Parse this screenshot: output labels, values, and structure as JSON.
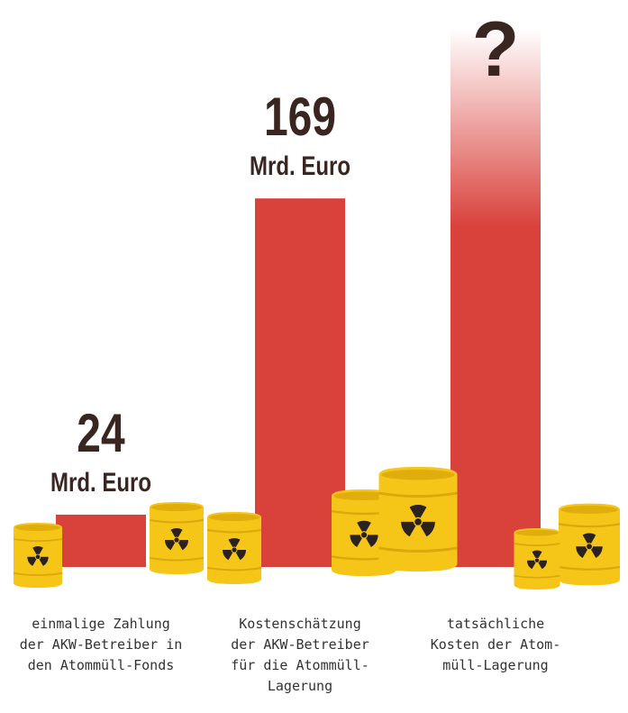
{
  "chart_data": {
    "type": "bar",
    "categories": [
      "einmalige Zahlung\nder AKW-Betreiber in\nden Atommüll-Fonds",
      "Kostenschätzung\nder AKW-Betreiber\nfür die Atommüll-\nLagerung",
      "tatsächliche\nKosten der Atom-\nmüll-Lagerung"
    ],
    "values": [
      24,
      169,
      null
    ],
    "value_labels": [
      "24",
      "169",
      "?"
    ],
    "unit": "Mrd. Euro",
    "color": "#d9413b",
    "ylim": [
      0,
      260
    ]
  }
}
